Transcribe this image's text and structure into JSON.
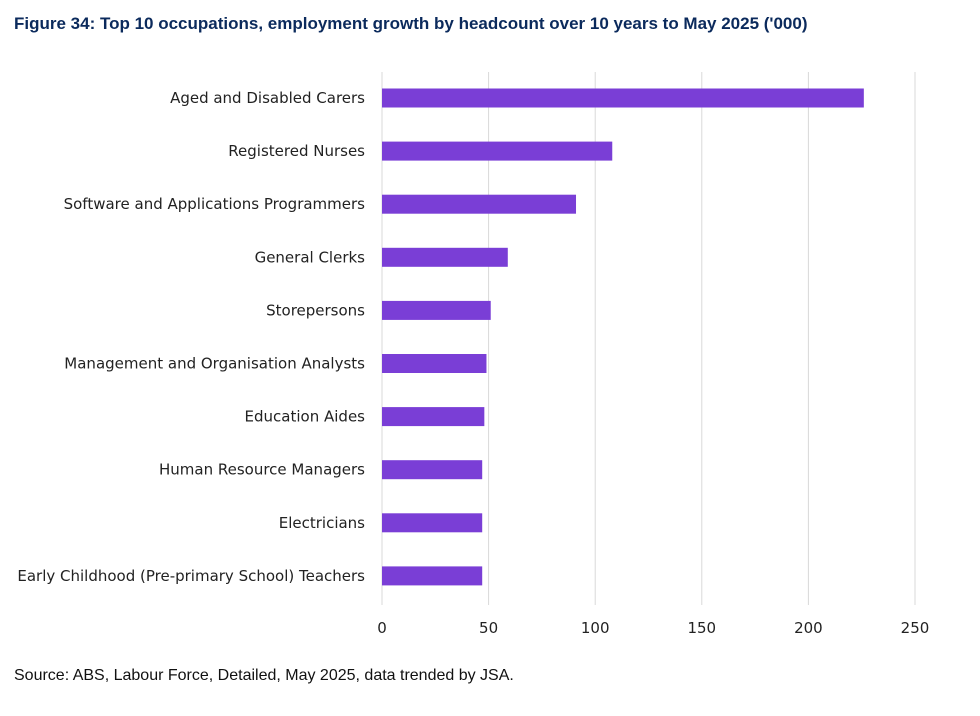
{
  "figure": {
    "title": "Figure 34: Top 10 occupations, employment growth by headcount over 10 years to May 2025 ('000)",
    "source": "Source: ABS, Labour Force, Detailed, May 2025, data trended by JSA."
  },
  "chart_data": {
    "type": "bar",
    "orientation": "horizontal",
    "title": "Figure 34: Top 10 occupations, employment growth by headcount over 10 years to May 2025 ('000)",
    "xlabel": "",
    "ylabel": "",
    "categories": [
      "Aged and Disabled Carers",
      "Registered Nurses",
      "Software and Applications Programmers",
      "General Clerks",
      "Storepersons",
      "Management and Organisation Analysts",
      "Education Aides",
      "Human Resource Managers",
      "Electricians",
      "Early Childhood (Pre-primary School) Teachers"
    ],
    "values": [
      226,
      108,
      91,
      59,
      51,
      49,
      48,
      47,
      47,
      47
    ],
    "xlim": [
      0,
      250
    ],
    "xticks": [
      0,
      50,
      100,
      150,
      200,
      250
    ],
    "grid": true,
    "bar_color": "#7a3ed6",
    "grid_color": "#d9d9d9"
  }
}
